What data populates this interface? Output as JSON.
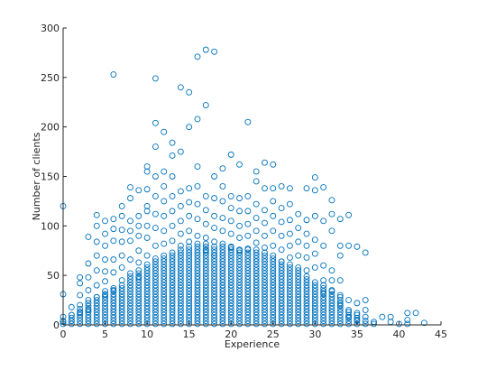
{
  "chart_data": {
    "type": "scatter",
    "title": "",
    "xlabel": "Experience",
    "ylabel": "Number of clients",
    "xlim": [
      0,
      45
    ],
    "ylim": [
      0,
      300
    ],
    "xticks": [
      0,
      5,
      10,
      15,
      20,
      25,
      30,
      35,
      40,
      45
    ],
    "yticks": [
      0,
      50,
      100,
      150,
      200,
      250,
      300
    ],
    "grid": false,
    "legend": "none",
    "marker": "open-circle",
    "marker_color": "#0072BD",
    "series": [
      {
        "points": [
          [
            0,
            120
          ],
          [
            0,
            31
          ],
          [
            0,
            8
          ],
          [
            0,
            3
          ],
          [
            1,
            18
          ],
          [
            1,
            10
          ],
          [
            1,
            4
          ],
          [
            2,
            48
          ],
          [
            2,
            42
          ],
          [
            2,
            30
          ],
          [
            2,
            20
          ],
          [
            2,
            12
          ],
          [
            3,
            89
          ],
          [
            3,
            62
          ],
          [
            3,
            48
          ],
          [
            3,
            35
          ],
          [
            3,
            25
          ],
          [
            3,
            15
          ],
          [
            4,
            111
          ],
          [
            4,
            100
          ],
          [
            4,
            84
          ],
          [
            4,
            70
          ],
          [
            4,
            55
          ],
          [
            4,
            40
          ],
          [
            4,
            28
          ],
          [
            5,
            105
          ],
          [
            5,
            92
          ],
          [
            5,
            80
          ],
          [
            5,
            66
          ],
          [
            5,
            54
          ],
          [
            5,
            44
          ],
          [
            5,
            30
          ],
          [
            6,
            253
          ],
          [
            6,
            107
          ],
          [
            6,
            97
          ],
          [
            6,
            85
          ],
          [
            6,
            66
          ],
          [
            6,
            53
          ],
          [
            6,
            35
          ],
          [
            7,
            120
          ],
          [
            7,
            110
          ],
          [
            7,
            96
          ],
          [
            7,
            84
          ],
          [
            7,
            70
          ],
          [
            7,
            58
          ],
          [
            7,
            45
          ],
          [
            8,
            139
          ],
          [
            8,
            128
          ],
          [
            8,
            105
          ],
          [
            8,
            95
          ],
          [
            8,
            85
          ],
          [
            8,
            66
          ],
          [
            8,
            52
          ],
          [
            9,
            136
          ],
          [
            9,
            110
          ],
          [
            9,
            100
          ],
          [
            9,
            90
          ],
          [
            9,
            75
          ],
          [
            9,
            63
          ],
          [
            9,
            48
          ],
          [
            10,
            160
          ],
          [
            10,
            155
          ],
          [
            10,
            137
          ],
          [
            10,
            120
          ],
          [
            10,
            115
          ],
          [
            10,
            100
          ],
          [
            10,
            88
          ],
          [
            10,
            70
          ],
          [
            11,
            249
          ],
          [
            11,
            204
          ],
          [
            11,
            180
          ],
          [
            11,
            150
          ],
          [
            11,
            130
          ],
          [
            11,
            112
          ],
          [
            11,
            98
          ],
          [
            11,
            80
          ],
          [
            12,
            195
          ],
          [
            12,
            155
          ],
          [
            12,
            140
          ],
          [
            12,
            125
          ],
          [
            12,
            110
          ],
          [
            12,
            95
          ],
          [
            12,
            82
          ],
          [
            13,
            184
          ],
          [
            13,
            171
          ],
          [
            13,
            150
          ],
          [
            13,
            130
          ],
          [
            13,
            115
          ],
          [
            13,
            100
          ],
          [
            13,
            85
          ],
          [
            14,
            240
          ],
          [
            14,
            175
          ],
          [
            14,
            135
          ],
          [
            14,
            120
          ],
          [
            14,
            105
          ],
          [
            14,
            92
          ],
          [
            14,
            80
          ],
          [
            15,
            235
          ],
          [
            15,
            200
          ],
          [
            15,
            138
          ],
          [
            15,
            124
          ],
          [
            15,
            110
          ],
          [
            15,
            95
          ],
          [
            15,
            84
          ],
          [
            16,
            271
          ],
          [
            16,
            208
          ],
          [
            16,
            160
          ],
          [
            16,
            140
          ],
          [
            16,
            122
          ],
          [
            16,
            107
          ],
          [
            16,
            90
          ],
          [
            17,
            278
          ],
          [
            17,
            222
          ],
          [
            17,
            130
          ],
          [
            17,
            116
          ],
          [
            17,
            102
          ],
          [
            17,
            88
          ],
          [
            17,
            75
          ],
          [
            18,
            276
          ],
          [
            18,
            150
          ],
          [
            18,
            128
          ],
          [
            18,
            110
          ],
          [
            18,
            98
          ],
          [
            18,
            84
          ],
          [
            18,
            70
          ],
          [
            19,
            158
          ],
          [
            19,
            140
          ],
          [
            19,
            125
          ],
          [
            19,
            108
          ],
          [
            19,
            95
          ],
          [
            19,
            82
          ],
          [
            20,
            172
          ],
          [
            20,
            130
          ],
          [
            20,
            118
          ],
          [
            20,
            105
          ],
          [
            20,
            92
          ],
          [
            20,
            78
          ],
          [
            21,
            162
          ],
          [
            21,
            128
          ],
          [
            21,
            115
          ],
          [
            21,
            100
          ],
          [
            21,
            88
          ],
          [
            21,
            75
          ],
          [
            22,
            205
          ],
          [
            22,
            130
          ],
          [
            22,
            115
          ],
          [
            22,
            102
          ],
          [
            22,
            90
          ],
          [
            22,
            77
          ],
          [
            23,
            155
          ],
          [
            23,
            145
          ],
          [
            23,
            122
          ],
          [
            23,
            108
          ],
          [
            23,
            95
          ],
          [
            23,
            83
          ],
          [
            24,
            164
          ],
          [
            24,
            138
          ],
          [
            24,
            116
          ],
          [
            24,
            103
          ],
          [
            24,
            90
          ],
          [
            24,
            78
          ],
          [
            25,
            162
          ],
          [
            25,
            138
          ],
          [
            25,
            125
          ],
          [
            25,
            110
          ],
          [
            25,
            95
          ],
          [
            25,
            80
          ],
          [
            26,
            140
          ],
          [
            26,
            118
          ],
          [
            26,
            104
          ],
          [
            26,
            90
          ],
          [
            26,
            76
          ],
          [
            26,
            64
          ],
          [
            27,
            138
          ],
          [
            27,
            122
          ],
          [
            27,
            106
          ],
          [
            27,
            92
          ],
          [
            27,
            80
          ],
          [
            27,
            68
          ],
          [
            28,
            112
          ],
          [
            28,
            98
          ],
          [
            28,
            84
          ],
          [
            28,
            70
          ],
          [
            28,
            58
          ],
          [
            29,
            138
          ],
          [
            29,
            106
          ],
          [
            29,
            92
          ],
          [
            29,
            80
          ],
          [
            29,
            68
          ],
          [
            29,
            55
          ],
          [
            30,
            149
          ],
          [
            30,
            136
          ],
          [
            30,
            110
          ],
          [
            30,
            86
          ],
          [
            30,
            72
          ],
          [
            30,
            58
          ],
          [
            31,
            139
          ],
          [
            31,
            105
          ],
          [
            31,
            80
          ],
          [
            31,
            60
          ],
          [
            31,
            45
          ],
          [
            31,
            32
          ],
          [
            32,
            126
          ],
          [
            32,
            112
          ],
          [
            32,
            95
          ],
          [
            32,
            55
          ],
          [
            32,
            45
          ],
          [
            32,
            35
          ],
          [
            33,
            107
          ],
          [
            33,
            80
          ],
          [
            33,
            70
          ],
          [
            33,
            45
          ],
          [
            33,
            30
          ],
          [
            33,
            20
          ],
          [
            34,
            111
          ],
          [
            34,
            80
          ],
          [
            34,
            25
          ],
          [
            34,
            15
          ],
          [
            34,
            8
          ],
          [
            35,
            79
          ],
          [
            35,
            22
          ],
          [
            35,
            12
          ],
          [
            35,
            5
          ],
          [
            36,
            73
          ],
          [
            36,
            25
          ],
          [
            36,
            15
          ],
          [
            36,
            8
          ],
          [
            37,
            3
          ],
          [
            37,
            1
          ],
          [
            38,
            8
          ],
          [
            39,
            8
          ],
          [
            39,
            3
          ],
          [
            40,
            1
          ],
          [
            41,
            12
          ],
          [
            41,
            5
          ],
          [
            41,
            1
          ],
          [
            42,
            12
          ],
          [
            43,
            2
          ]
        ]
      }
    ],
    "dense_band": {
      "description_values": [
        [
          0,
          5
        ],
        [
          1,
          12
        ],
        [
          2,
          18
        ],
        [
          3,
          22
        ],
        [
          4,
          30
        ],
        [
          5,
          35
        ],
        [
          6,
          38
        ],
        [
          7,
          42
        ],
        [
          8,
          50
        ],
        [
          9,
          55
        ],
        [
          10,
          62
        ],
        [
          11,
          68
        ],
        [
          12,
          72
        ],
        [
          13,
          75
        ],
        [
          14,
          78
        ],
        [
          15,
          80
        ],
        [
          16,
          82
        ],
        [
          17,
          82
        ],
        [
          18,
          80
        ],
        [
          19,
          80
        ],
        [
          20,
          80
        ],
        [
          21,
          78
        ],
        [
          22,
          78
        ],
        [
          23,
          78
        ],
        [
          24,
          75
        ],
        [
          25,
          72
        ],
        [
          26,
          65
        ],
        [
          27,
          62
        ],
        [
          28,
          55
        ],
        [
          29,
          50
        ],
        [
          30,
          45
        ],
        [
          31,
          40
        ],
        [
          32,
          35
        ],
        [
          33,
          30
        ],
        [
          34,
          15
        ],
        [
          35,
          10
        ],
        [
          36,
          5
        ]
      ]
    }
  }
}
